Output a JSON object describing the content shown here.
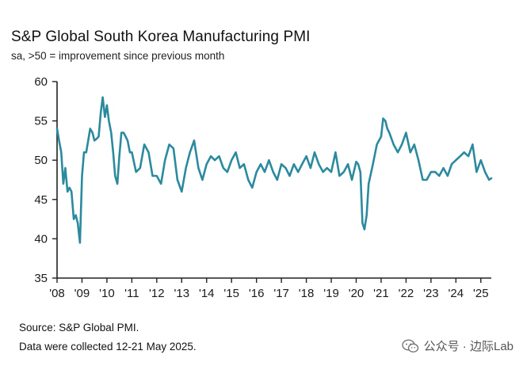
{
  "title": "S&P Global South Korea Manufacturing PMI",
  "subtitle": "sa, >50 = improvement since previous month",
  "source": "Source: S&P Global PMI.",
  "collected": "Data were collected 12-21 May 2025.",
  "watermark": {
    "text": "公众号 · 边际Lab",
    "icon": "wechat-icon"
  },
  "colors": {
    "line": "#2B8A9E",
    "axis": "#222222"
  },
  "chart_data": {
    "type": "line",
    "title": "S&P Global South Korea Manufacturing PMI",
    "subtitle": "sa, >50 = improvement since previous month",
    "xlabel": "",
    "ylabel": "",
    "ylim": [
      35,
      60
    ],
    "yticks": [
      60,
      55,
      50,
      45,
      40,
      35
    ],
    "xlim": [
      2008.0,
      2025.42
    ],
    "xticks": [
      {
        "label": "'08",
        "year": 2008
      },
      {
        "label": "'09",
        "year": 2009
      },
      {
        "label": "'10",
        "year": 2010
      },
      {
        "label": "'11",
        "year": 2011
      },
      {
        "label": "'12",
        "year": 2012
      },
      {
        "label": "'13",
        "year": 2013
      },
      {
        "label": "'14",
        "year": 2014
      },
      {
        "label": "'15",
        "year": 2015
      },
      {
        "label": "'16",
        "year": 2016
      },
      {
        "label": "'17",
        "year": 2017
      },
      {
        "label": "'18",
        "year": 2018
      },
      {
        "label": "'19",
        "year": 2019
      },
      {
        "label": "'20",
        "year": 2020
      },
      {
        "label": "'21",
        "year": 2021
      },
      {
        "label": "'22",
        "year": 2022
      },
      {
        "label": "'23",
        "year": 2023
      },
      {
        "label": "'24",
        "year": 2024
      },
      {
        "label": "'25",
        "year": 2025
      }
    ],
    "series": [
      {
        "name": "South Korea Manufacturing PMI",
        "x": [
          2008.0,
          2008.08,
          2008.17,
          2008.25,
          2008.33,
          2008.42,
          2008.5,
          2008.58,
          2008.67,
          2008.75,
          2008.83,
          2008.92,
          2009.0,
          2009.08,
          2009.17,
          2009.25,
          2009.33,
          2009.42,
          2009.5,
          2009.58,
          2009.67,
          2009.75,
          2009.83,
          2009.92,
          2010.0,
          2010.08,
          2010.17,
          2010.25,
          2010.33,
          2010.42,
          2010.5,
          2010.58,
          2010.67,
          2010.75,
          2010.83,
          2010.92,
          2011.0,
          2011.17,
          2011.33,
          2011.5,
          2011.67,
          2011.83,
          2012.0,
          2012.17,
          2012.33,
          2012.5,
          2012.67,
          2012.83,
          2013.0,
          2013.17,
          2013.33,
          2013.5,
          2013.67,
          2013.83,
          2014.0,
          2014.17,
          2014.33,
          2014.5,
          2014.67,
          2014.83,
          2015.0,
          2015.17,
          2015.33,
          2015.5,
          2015.67,
          2015.83,
          2016.0,
          2016.17,
          2016.33,
          2016.5,
          2016.67,
          2016.83,
          2017.0,
          2017.17,
          2017.33,
          2017.5,
          2017.67,
          2017.83,
          2018.0,
          2018.17,
          2018.33,
          2018.5,
          2018.67,
          2018.83,
          2019.0,
          2019.17,
          2019.33,
          2019.5,
          2019.67,
          2019.83,
          2020.0,
          2020.08,
          2020.17,
          2020.25,
          2020.33,
          2020.42,
          2020.5,
          2020.67,
          2020.83,
          2021.0,
          2021.08,
          2021.17,
          2021.25,
          2021.33,
          2021.5,
          2021.67,
          2021.83,
          2022.0,
          2022.17,
          2022.33,
          2022.5,
          2022.67,
          2022.83,
          2023.0,
          2023.17,
          2023.33,
          2023.5,
          2023.67,
          2023.83,
          2024.0,
          2024.17,
          2024.33,
          2024.5,
          2024.67,
          2024.83,
          2025.0,
          2025.17,
          2025.33,
          2025.42
        ],
        "values": [
          54.0,
          52.5,
          51.0,
          47.0,
          49.0,
          46.0,
          46.5,
          46.0,
          42.5,
          43.0,
          42.0,
          39.5,
          48.0,
          51.0,
          51.0,
          52.5,
          54.0,
          53.5,
          52.5,
          52.7,
          53.0,
          56.0,
          58.0,
          55.5,
          57.0,
          55.0,
          53.5,
          51.0,
          48.0,
          47.0,
          50.5,
          53.5,
          53.5,
          53.0,
          52.5,
          51.0,
          51.0,
          48.5,
          49.0,
          52.0,
          51.0,
          48.0,
          48.0,
          47.0,
          50.0,
          52.0,
          51.5,
          47.5,
          46.0,
          49.0,
          51.0,
          52.5,
          49.0,
          47.5,
          49.5,
          50.5,
          50.0,
          50.5,
          49.0,
          48.5,
          50.0,
          51.0,
          49.0,
          49.5,
          47.5,
          46.5,
          48.5,
          49.5,
          48.5,
          50.0,
          48.5,
          47.5,
          49.5,
          49.0,
          48.0,
          49.5,
          48.5,
          49.5,
          50.5,
          49.0,
          51.0,
          49.5,
          48.5,
          49.0,
          48.5,
          51.0,
          48.0,
          48.5,
          49.5,
          47.5,
          49.8,
          49.5,
          48.5,
          42.0,
          41.2,
          43.0,
          47.0,
          49.5,
          52.0,
          53.0,
          55.3,
          55.0,
          54.0,
          53.5,
          52.0,
          51.0,
          52.0,
          53.5,
          51.0,
          52.0,
          50.0,
          47.5,
          47.5,
          48.5,
          48.5,
          48.0,
          49.0,
          48.0,
          49.5,
          50.0,
          50.5,
          51.0,
          50.5,
          52.0,
          48.5,
          50.0,
          48.5,
          47.5,
          47.7
        ]
      }
    ]
  }
}
